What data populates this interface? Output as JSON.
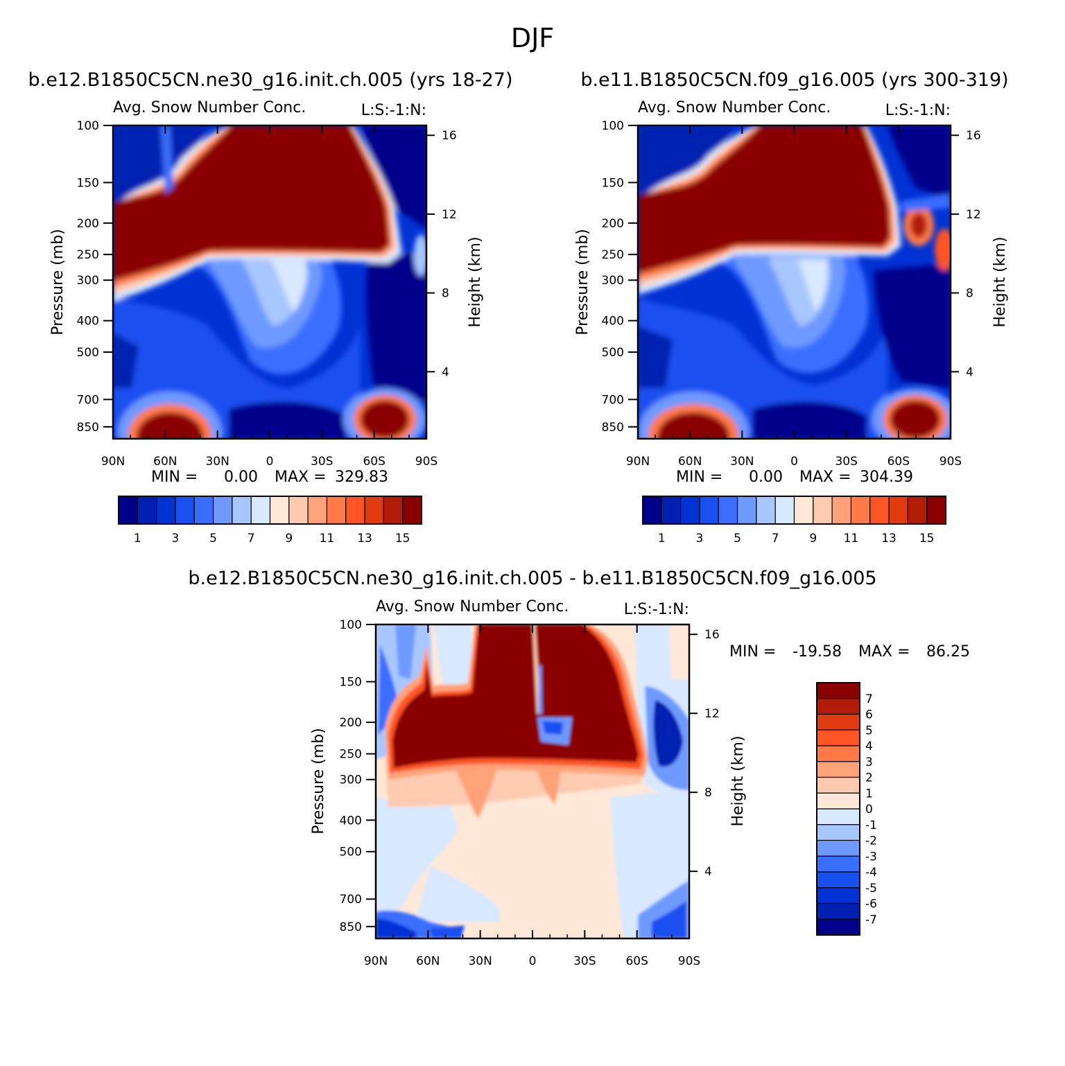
{
  "figure": {
    "title": "DJF"
  },
  "colors": {
    "abs_levels": [
      "#00008a",
      "#0020b0",
      "#0032d4",
      "#1a4ff0",
      "#3a6eff",
      "#6e9aff",
      "#a8c6ff",
      "#d8e8ff",
      "#ffe8d8",
      "#ffcbb0",
      "#ffa27a",
      "#ff7a48",
      "#ff5426",
      "#e03a10",
      "#b01c08",
      "#8a0000"
    ],
    "diff_levels": [
      "#00008a",
      "#0020b0",
      "#0032d4",
      "#1a4ff0",
      "#3a6eff",
      "#6e9aff",
      "#a8c6ff",
      "#d8e8ff",
      "#ffe8d8",
      "#ffcbb0",
      "#ffa27a",
      "#ff7a48",
      "#ff5426",
      "#e03a10",
      "#b01c08",
      "#8a0000"
    ]
  },
  "chart_data": [
    {
      "type": "heatmap",
      "panel": "top-left",
      "case_title": "b.e12.B1850C5CN.ne30_g16.init.ch.005 (yrs 18-27)",
      "title": "Avg. Snow Number Conc.",
      "units": "L:S:-1:N:",
      "xlabel": "",
      "ylabel": "Pressure (mb)",
      "ylabel_right": "Height (km)",
      "x_ticks": [
        "90N",
        "60N",
        "30N",
        "0",
        "30S",
        "60S",
        "90S"
      ],
      "y_ticks": [
        "100",
        "150",
        "200",
        "250",
        "300",
        "400",
        "500",
        "700",
        "850"
      ],
      "y_ticks_right": [
        "16",
        "12",
        "8",
        "4"
      ],
      "min_label": "MIN =",
      "min": "0.00",
      "max_label": "MAX =",
      "max": "329.83",
      "colorbar_labels": [
        "1",
        "3",
        "5",
        "7",
        "9",
        "11",
        "13",
        "15"
      ]
    },
    {
      "type": "heatmap",
      "panel": "top-right",
      "case_title": "b.e11.B1850C5CN.f09_g16.005 (yrs 300-319)",
      "title": "Avg. Snow Number Conc.",
      "units": "L:S:-1:N:",
      "xlabel": "",
      "ylabel": "Pressure (mb)",
      "ylabel_right": "Height (km)",
      "x_ticks": [
        "90N",
        "60N",
        "30N",
        "0",
        "30S",
        "60S",
        "90S"
      ],
      "y_ticks": [
        "100",
        "150",
        "200",
        "250",
        "300",
        "400",
        "500",
        "700",
        "850"
      ],
      "y_ticks_right": [
        "16",
        "12",
        "8",
        "4"
      ],
      "min_label": "MIN =",
      "min": "0.00",
      "max_label": "MAX =",
      "max": "304.39",
      "colorbar_labels": [
        "1",
        "3",
        "5",
        "7",
        "9",
        "11",
        "13",
        "15"
      ]
    },
    {
      "type": "heatmap",
      "panel": "bottom",
      "case_title": "b.e12.B1850C5CN.ne30_g16.init.ch.005 - b.e11.B1850C5CN.f09_g16.005",
      "title": "Avg. Snow Number Conc.",
      "units": "L:S:-1:N:",
      "xlabel": "",
      "ylabel": "Pressure (mb)",
      "ylabel_right": "Height (km)",
      "x_ticks": [
        "90N",
        "60N",
        "30N",
        "0",
        "30S",
        "60S",
        "90S"
      ],
      "y_ticks": [
        "100",
        "150",
        "200",
        "250",
        "300",
        "400",
        "500",
        "700",
        "850"
      ],
      "y_ticks_right": [
        "16",
        "12",
        "8",
        "4"
      ],
      "min_label": "MIN =",
      "min": "-19.58",
      "max_label": "MAX =",
      "max": "86.25",
      "colorbar_labels": [
        "7",
        "6",
        "5",
        "4",
        "3",
        "2",
        "1",
        "0",
        "-1",
        "-2",
        "-3",
        "-4",
        "-5",
        "-6",
        "-7"
      ]
    }
  ]
}
